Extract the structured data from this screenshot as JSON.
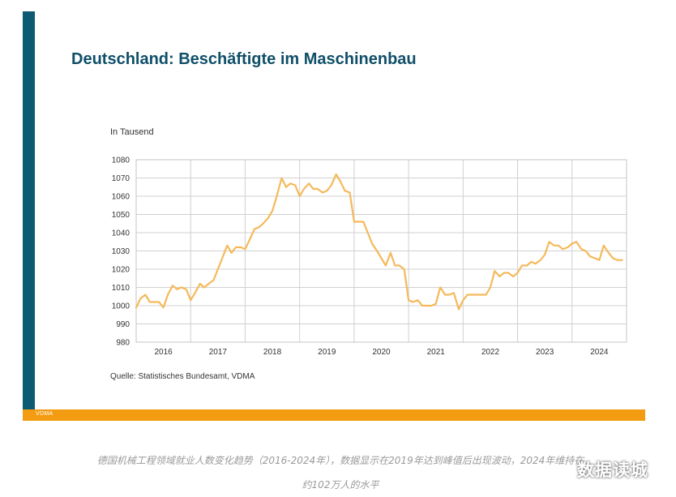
{
  "slide": {
    "title": "Deutschland: Beschäftigte im Maschinenbau",
    "source": "Quelle: Statistisches Bundesamt, VDMA",
    "brand": "VDMA",
    "accent_color": "#0f5a73",
    "bar_color": "#f39c12"
  },
  "caption": {
    "line1": "德国机械工程领域就业人数变化趋势（2016-2024年），数据显示在2019年达到峰值后出现波动，2024年维持在",
    "line2": "约102万人的水平"
  },
  "watermark": "数据读城",
  "chart_data": {
    "type": "line",
    "ylabel": "In Tausend",
    "ylim": [
      980,
      1080
    ],
    "yticks": [
      980,
      990,
      1000,
      1010,
      1020,
      1030,
      1040,
      1050,
      1060,
      1070,
      1080
    ],
    "xlim": [
      2015.5,
      2024.5
    ],
    "xtick_labels": [
      "2016",
      "2017",
      "2018",
      "2019",
      "2020",
      "2021",
      "2022",
      "2023",
      "2024"
    ],
    "grid": true,
    "line_color": "#f5b95a",
    "series": [
      {
        "x": [
          2015.5,
          2015.58,
          2015.67,
          2015.75,
          2015.83,
          2015.92,
          2016.0,
          2016.08,
          2016.17,
          2016.25,
          2016.33,
          2016.42,
          2016.5,
          2016.58,
          2016.67,
          2016.75,
          2016.83,
          2016.92,
          2017.0,
          2017.08,
          2017.17,
          2017.25,
          2017.33,
          2017.42,
          2017.5,
          2017.58,
          2017.67,
          2017.75,
          2017.83,
          2017.92,
          2018.0,
          2018.08,
          2018.17,
          2018.25,
          2018.33,
          2018.42,
          2018.5,
          2018.58,
          2018.67,
          2018.75,
          2018.83,
          2018.92,
          2019.0,
          2019.08,
          2019.17,
          2019.25,
          2019.33,
          2019.42,
          2019.5,
          2019.58,
          2019.67,
          2019.75,
          2019.83,
          2019.92,
          2020.0,
          2020.08,
          2020.17,
          2020.25,
          2020.33,
          2020.42,
          2020.5,
          2020.58,
          2020.67,
          2020.75,
          2020.83,
          2020.92,
          2021.0,
          2021.08,
          2021.17,
          2021.25,
          2021.33,
          2021.42,
          2021.5,
          2021.58,
          2021.67,
          2021.75,
          2021.83,
          2021.92,
          2022.0,
          2022.08,
          2022.17,
          2022.25,
          2022.33,
          2022.42,
          2022.5,
          2022.58,
          2022.67,
          2022.75,
          2022.83,
          2022.92,
          2023.0,
          2023.08,
          2023.17,
          2023.25,
          2023.33,
          2023.42,
          2023.5,
          2023.58,
          2023.67,
          2023.75,
          2023.83,
          2023.92,
          2024.0,
          2024.08,
          2024.17,
          2024.25,
          2024.33,
          2024.42
        ],
        "values": [
          999,
          1004,
          1006,
          1002,
          1002,
          1002,
          999,
          1006,
          1011,
          1009,
          1010,
          1009,
          1003,
          1007,
          1012,
          1010,
          1012,
          1014,
          1020,
          1026,
          1033,
          1029,
          1032,
          1032,
          1031,
          1036,
          1042,
          1043,
          1045,
          1048,
          1052,
          1060,
          1070,
          1065,
          1067,
          1066,
          1060,
          1064,
          1067,
          1064,
          1064,
          1062,
          1063,
          1066,
          1072,
          1068,
          1063,
          1062,
          1046,
          1046,
          1046,
          1040,
          1034,
          1030,
          1026,
          1022,
          1029,
          1022,
          1022,
          1020,
          1003,
          1002,
          1003,
          1000,
          1000,
          1000,
          1001,
          1010,
          1006,
          1006,
          1007,
          998,
          1003,
          1006,
          1006,
          1006,
          1006,
          1006,
          1010,
          1019,
          1016,
          1018,
          1018,
          1016,
          1018,
          1022,
          1022,
          1024,
          1023,
          1025,
          1028,
          1035,
          1033,
          1033,
          1031,
          1032,
          1034,
          1035,
          1031,
          1030,
          1027,
          1026,
          1025,
          1033,
          1029,
          1026,
          1025,
          1025
        ]
      }
    ]
  }
}
